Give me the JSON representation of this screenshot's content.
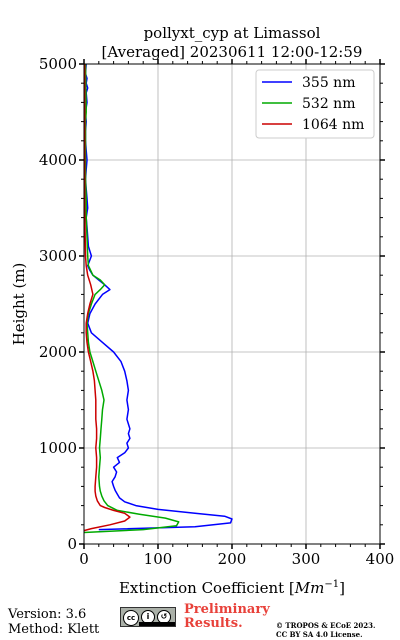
{
  "chart_data": {
    "type": "line",
    "title_line1": "pollyxt_cyp at Limassol",
    "title_line2": "[Averaged] 20230611 12:00-12:59",
    "xlabel": "Extinction Coefficient [",
    "xlabel_unit": "Mm",
    "xlabel_exp": "−1",
    "xlabel_end": "]",
    "ylabel": "Height (m)",
    "xlim": [
      0,
      400
    ],
    "ylim": [
      0,
      5000
    ],
    "xticks": [
      0,
      100,
      200,
      300,
      400
    ],
    "yticks": [
      0,
      1000,
      2000,
      3000,
      4000,
      5000
    ],
    "grid": true,
    "legend_position": "top-right",
    "series": [
      {
        "name": "355 nm",
        "color": "#0000ff",
        "y": [
          150,
          180,
          220,
          260,
          290,
          320,
          360,
          400,
          440,
          480,
          520,
          560,
          600,
          650,
          700,
          750,
          800,
          850,
          900,
          950,
          1000,
          1050,
          1100,
          1150,
          1200,
          1250,
          1300,
          1400,
          1500,
          1600,
          1700,
          1800,
          1900,
          2000,
          2100,
          2200,
          2300,
          2400,
          2500,
          2600,
          2650,
          2700,
          2750,
          2800,
          2850,
          2900,
          3000,
          3100,
          3200,
          3300,
          3400,
          3500,
          3600,
          3700,
          3800,
          3900,
          4000,
          4100,
          4200,
          4300,
          4400,
          4500,
          4600,
          4700,
          4750,
          4800,
          4850,
          4900,
          5000
        ],
        "x": [
          20,
          150,
          198,
          200,
          190,
          150,
          100,
          70,
          55,
          48,
          45,
          42,
          40,
          38,
          42,
          44,
          40,
          48,
          45,
          55,
          60,
          58,
          62,
          60,
          62,
          60,
          58,
          60,
          58,
          60,
          58,
          55,
          50,
          40,
          25,
          10,
          5,
          8,
          15,
          25,
          35,
          28,
          20,
          12,
          8,
          5,
          10,
          6,
          5,
          4,
          3,
          5,
          4,
          3,
          2,
          3,
          4,
          3,
          2,
          2,
          3,
          2,
          4,
          3,
          5,
          3,
          4,
          2,
          3
        ]
      },
      {
        "name": "532 nm",
        "color": "#00aa00",
        "y": [
          120,
          150,
          190,
          230,
          270,
          310,
          350,
          400,
          450,
          500,
          550,
          600,
          700,
          800,
          900,
          1000,
          1100,
          1200,
          1300,
          1400,
          1500,
          1600,
          1700,
          1800,
          1900,
          2000,
          2100,
          2200,
          2300,
          2400,
          2500,
          2600,
          2650,
          2700,
          2750,
          2800,
          2900,
          3000,
          3200,
          3400,
          3600,
          3800,
          4000,
          4200,
          4400,
          4500,
          5000
        ],
        "x": [
          0,
          80,
          125,
          128,
          110,
          75,
          45,
          32,
          27,
          24,
          22,
          21,
          20,
          21,
          22,
          21,
          22,
          23,
          24,
          25,
          27,
          24,
          20,
          16,
          12,
          8,
          6,
          5,
          4,
          6,
          10,
          15,
          22,
          28,
          22,
          12,
          6,
          5,
          4,
          3,
          3,
          2,
          2,
          2,
          2,
          3,
          2
        ]
      },
      {
        "name": "1064 nm",
        "color": "#cc0000",
        "y": [
          140,
          160,
          200,
          240,
          280,
          320,
          350,
          380,
          400,
          450,
          500,
          550,
          600,
          700,
          800,
          900,
          1000,
          1100,
          1200,
          1300,
          1400,
          1500,
          1600,
          1700,
          1800,
          1900,
          2000,
          2100,
          2200,
          2300,
          2400,
          2500,
          2600,
          2700,
          2800,
          2900,
          3000,
          3500,
          4000,
          4500,
          5000
        ],
        "x": [
          0,
          10,
          35,
          55,
          62,
          55,
          40,
          28,
          22,
          18,
          16,
          15,
          15,
          16,
          17,
          17,
          16,
          17,
          17,
          16,
          16,
          16,
          15,
          14,
          12,
          9,
          6,
          4,
          3,
          3,
          5,
          8,
          12,
          9,
          5,
          3,
          2,
          1,
          1,
          1,
          1
        ]
      }
    ]
  },
  "footer": {
    "version": "Version: 3.6",
    "method": "Method: Klett",
    "preliminary_line1": "Preliminary",
    "preliminary_line2": "Results.",
    "copyright_line1": "© TROPOS & ECoE 2023.",
    "copyright_line2": "CC BY SA 4.0 License.",
    "cc_icon": "cc-by-sa-icon"
  }
}
